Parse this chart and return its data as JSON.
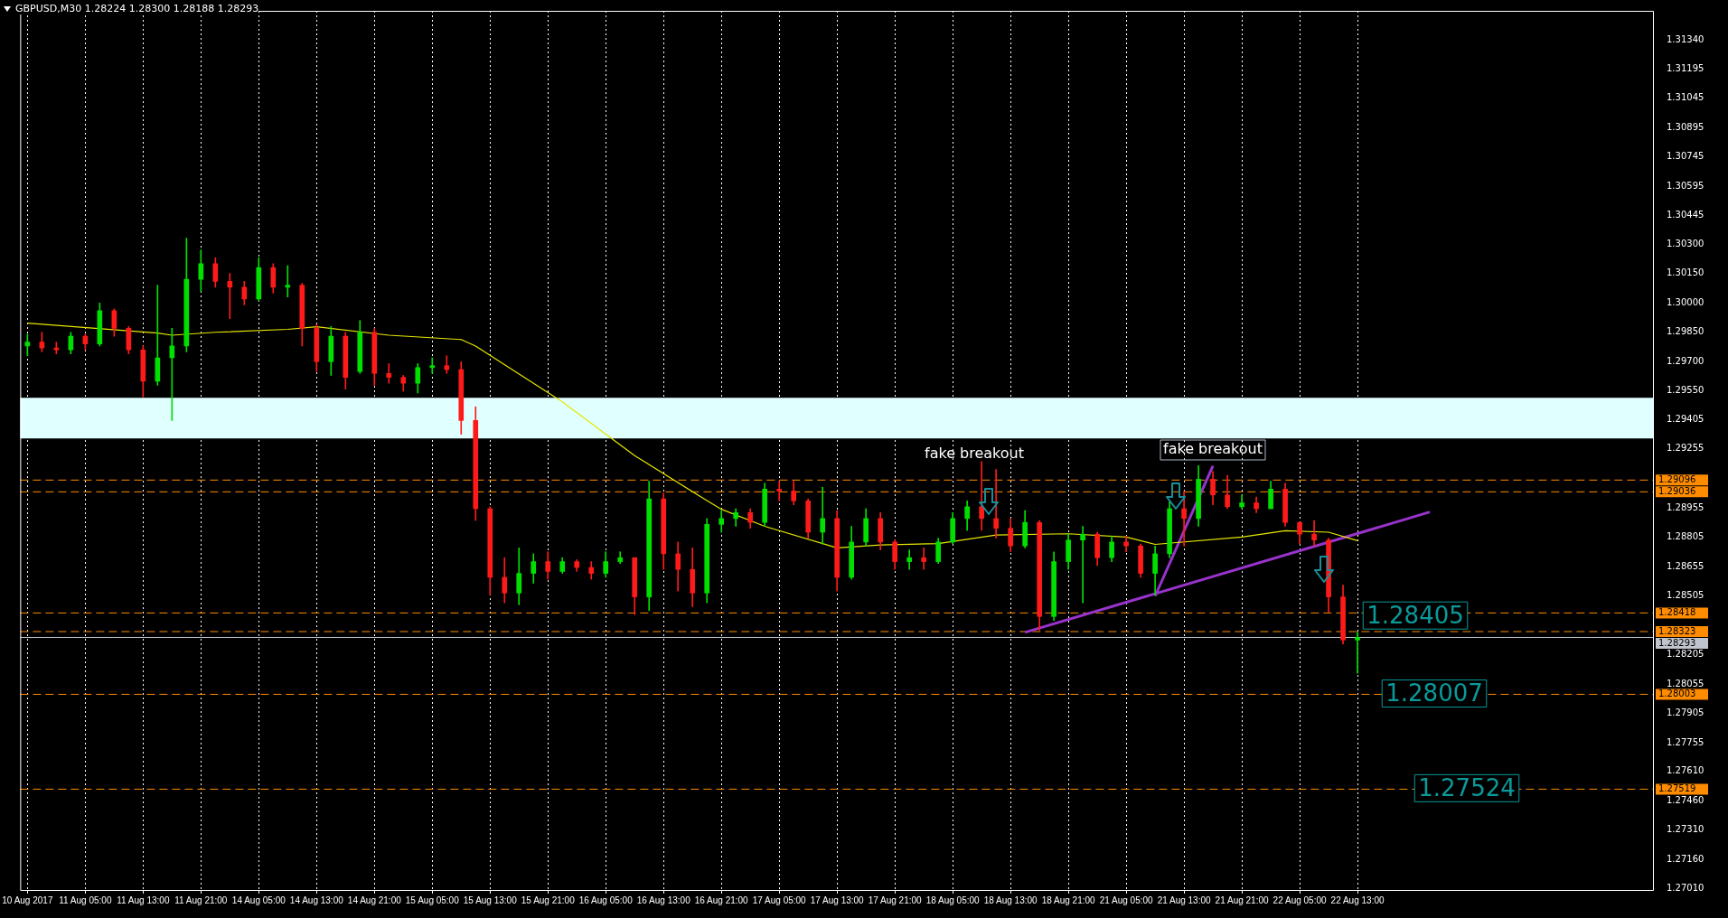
{
  "chart_data": {
    "type": "candlestick",
    "title": "GBPUSD,M30  1.28224 1.28300 1.28188 1.28293",
    "categories": [
      "10 Aug 2017",
      null,
      null,
      null,
      "11 Aug 05:00",
      null,
      null,
      null,
      "11 Aug 13:00",
      null,
      null,
      null,
      "11 Aug 21:00",
      null,
      null,
      null,
      "14 Aug 05:00",
      null,
      null,
      null,
      "14 Aug 13:00",
      null,
      null,
      null,
      "14 Aug 21:00",
      null,
      null,
      null,
      "15 Aug 05:00",
      null,
      null,
      null,
      "15 Aug 13:00",
      null,
      null,
      null,
      "15 Aug 21:00",
      null,
      null,
      null,
      "16 Aug 05:00",
      null,
      null,
      null,
      "16 Aug 13:00",
      null,
      null,
      null,
      "16 Aug 21:00",
      null,
      null,
      null,
      "17 Aug 05:00",
      null,
      null,
      null,
      "17 Aug 13:00",
      null,
      null,
      null,
      "17 Aug 21:00",
      null,
      null,
      null,
      "18 Aug 05:00",
      null,
      null,
      null,
      "18 Aug 13:00",
      null,
      null,
      null,
      "18 Aug 21:00",
      null,
      null,
      null,
      "21 Aug 05:00",
      null,
      null,
      null,
      "21 Aug 13:00",
      null,
      null,
      null,
      "21 Aug 21:00",
      null,
      null,
      null,
      "22 Aug 05:00",
      null,
      null,
      null,
      "22 Aug 13:00",
      null,
      null,
      null,
      null,
      null,
      null,
      null,
      null,
      null,
      null,
      null,
      null,
      null,
      null,
      null,
      null,
      null,
      null,
      null,
      null
    ],
    "ohlc": [
      [
        1.2978,
        1.2984,
        1.2973,
        1.298
      ],
      [
        1.298,
        1.2985,
        1.2975,
        1.2977
      ],
      [
        1.2977,
        1.298,
        1.2974,
        1.2976
      ],
      [
        1.2976,
        1.2985,
        1.2974,
        1.2983
      ],
      [
        1.2983,
        1.2984,
        1.2976,
        1.2979
      ],
      [
        1.2979,
        1.3,
        1.2978,
        1.2996
      ],
      [
        1.2996,
        1.2997,
        1.2983,
        1.2987
      ],
      [
        1.2987,
        1.2988,
        1.2974,
        1.2976
      ],
      [
        1.2976,
        1.2978,
        1.2952,
        1.296
      ],
      [
        1.296,
        1.3009,
        1.2958,
        1.2972
      ],
      [
        1.2972,
        1.2987,
        1.294,
        1.2978
      ],
      [
        1.2978,
        1.3033,
        1.2975,
        1.3012
      ],
      [
        1.3012,
        1.3027,
        1.3006,
        1.302
      ],
      [
        1.302,
        1.3023,
        1.3008,
        1.3011
      ],
      [
        1.3011,
        1.3015,
        1.2992,
        1.3008
      ],
      [
        1.3008,
        1.3011,
        1.2999,
        1.3002
      ],
      [
        1.3002,
        1.3023,
        1.3001,
        1.3018
      ],
      [
        1.3018,
        1.302,
        1.3005,
        1.3008
      ],
      [
        1.3008,
        1.3019,
        1.3003,
        1.3009
      ],
      [
        1.3009,
        1.301,
        1.2978,
        1.2987
      ],
      [
        1.2987,
        1.2989,
        1.2965,
        1.297
      ],
      [
        1.297,
        1.2988,
        1.2963,
        1.2983
      ],
      [
        1.2983,
        1.2985,
        1.2956,
        1.2962
      ],
      [
        1.2965,
        1.2991,
        1.2964,
        1.2985
      ],
      [
        1.2985,
        1.2987,
        1.2958,
        1.2964
      ],
      [
        1.2964,
        1.2969,
        1.2959,
        1.2962
      ],
      [
        1.2962,
        1.2963,
        1.2955,
        1.2959
      ],
      [
        1.2959,
        1.2969,
        1.2954,
        1.2967
      ],
      [
        1.2967,
        1.2972,
        1.2964,
        1.2968
      ],
      [
        1.2968,
        1.2973,
        1.2964,
        1.2966
      ],
      [
        1.2966,
        1.297,
        1.2933,
        1.294
      ],
      [
        1.294,
        1.2947,
        1.2889,
        1.2895
      ],
      [
        1.2895,
        1.2896,
        1.2851,
        1.286
      ],
      [
        1.286,
        1.287,
        1.2847,
        1.2852
      ],
      [
        1.2852,
        1.2875,
        1.2846,
        1.2862
      ],
      [
        1.2862,
        1.2872,
        1.2857,
        1.2868
      ],
      [
        1.2868,
        1.2873,
        1.2859,
        1.2863
      ],
      [
        1.2863,
        1.287,
        1.2862,
        1.2868
      ],
      [
        1.2868,
        1.2869,
        1.2863,
        1.2865
      ],
      [
        1.2865,
        1.2868,
        1.2859,
        1.2862
      ],
      [
        1.2862,
        1.2873,
        1.286,
        1.2868
      ],
      [
        1.2868,
        1.2873,
        1.2867,
        1.287
      ],
      [
        1.287,
        1.287,
        1.2841,
        1.285
      ],
      [
        1.285,
        1.2909,
        1.2843,
        1.29
      ],
      [
        1.29,
        1.2903,
        1.2864,
        1.2872
      ],
      [
        1.2872,
        1.2878,
        1.2853,
        1.2864
      ],
      [
        1.2864,
        1.2875,
        1.2845,
        1.2852
      ],
      [
        1.2852,
        1.289,
        1.2847,
        1.2887
      ],
      [
        1.2887,
        1.2894,
        1.2883,
        1.289
      ],
      [
        1.289,
        1.2895,
        1.2886,
        1.2893
      ],
      [
        1.2893,
        1.2895,
        1.2885,
        1.2888
      ],
      [
        1.2888,
        1.2908,
        1.2886,
        1.2905
      ],
      [
        1.2905,
        1.2909,
        1.2899,
        1.2904
      ],
      [
        1.2904,
        1.2909,
        1.2897,
        1.2899
      ],
      [
        1.2899,
        1.29,
        1.288,
        1.2883
      ],
      [
        1.2883,
        1.2906,
        1.2877,
        1.289
      ],
      [
        1.289,
        1.2894,
        1.2853,
        1.286
      ],
      [
        1.286,
        1.2886,
        1.2859,
        1.2878
      ],
      [
        1.2878,
        1.2895,
        1.2876,
        1.289
      ],
      [
        1.289,
        1.2893,
        1.2874,
        1.2878
      ],
      [
        1.2878,
        1.2879,
        1.2864,
        1.2868
      ],
      [
        1.2868,
        1.2874,
        1.2864,
        1.287
      ],
      [
        1.287,
        1.2875,
        1.2864,
        1.2868
      ],
      [
        1.2868,
        1.288,
        1.2867,
        1.2878
      ],
      [
        1.2878,
        1.2893,
        1.2877,
        1.289
      ],
      [
        1.289,
        1.2899,
        1.2884,
        1.2896
      ],
      [
        1.2896,
        1.2919,
        1.2884,
        1.289
      ],
      [
        1.289,
        1.2915,
        1.288,
        1.2885
      ],
      [
        1.2885,
        1.289,
        1.2873,
        1.2876
      ],
      [
        1.2876,
        1.2894,
        1.2875,
        1.2888
      ],
      [
        1.2888,
        1.2889,
        1.2833,
        1.284
      ],
      [
        1.284,
        1.2873,
        1.2838,
        1.2868
      ],
      [
        1.2868,
        1.2882,
        1.2864,
        1.2879
      ],
      [
        1.2879,
        1.2886,
        1.2847,
        1.2882
      ],
      [
        1.2882,
        1.2883,
        1.2866,
        1.287
      ],
      [
        1.287,
        1.2881,
        1.2868,
        1.2878
      ],
      [
        1.2878,
        1.2881,
        1.2873,
        1.2876
      ],
      [
        1.2876,
        1.2877,
        1.286,
        1.2862
      ],
      [
        1.2862,
        1.2876,
        1.2851,
        1.2872
      ],
      [
        1.2872,
        1.2899,
        1.287,
        1.2895
      ],
      [
        1.2895,
        1.2904,
        1.2876,
        1.289
      ],
      [
        1.289,
        1.2917,
        1.2886,
        1.291
      ],
      [
        1.291,
        1.2914,
        1.2897,
        1.2902
      ],
      [
        1.2902,
        1.2912,
        1.2895,
        1.2896
      ],
      [
        1.2896,
        1.2902,
        1.2895,
        1.2898
      ],
      [
        1.2898,
        1.2901,
        1.2893,
        1.2895
      ],
      [
        1.2895,
        1.2909,
        1.2895,
        1.2905
      ],
      [
        1.2905,
        1.2908,
        1.2886,
        1.2888
      ],
      [
        1.2888,
        1.2888,
        1.2877,
        1.2882
      ],
      [
        1.2882,
        1.2889,
        1.2876,
        1.2879
      ],
      [
        1.2879,
        1.288,
        1.2842,
        1.285
      ],
      [
        1.285,
        1.2856,
        1.2826,
        1.2828
      ],
      [
        1.2828,
        1.2832,
        1.2811,
        1.28293
      ],
      null,
      null,
      null,
      null,
      null,
      null,
      null,
      null,
      null,
      null,
      null,
      null,
      null,
      null,
      null,
      null,
      null,
      null,
      null,
      null
    ],
    "series": [
      {
        "type": "line",
        "color": "#e6e600",
        "values": [
          1.29897,
          null,
          null,
          null,
          null,
          null,
          null,
          null,
          null,
          1.29846,
          1.29835,
          null,
          null,
          1.2985,
          null,
          null,
          null,
          null,
          1.29865,
          null,
          1.29878,
          null,
          null,
          null,
          null,
          1.29835,
          null,
          null,
          null,
          null,
          1.29813,
          1.2978,
          null,
          null,
          null,
          null,
          null,
          1.29495,
          null,
          null,
          null,
          null,
          1.29221,
          null,
          null,
          null,
          null,
          1.28991,
          1.28947,
          null,
          null,
          1.2886,
          null,
          null,
          null,
          null,
          1.2875,
          null,
          null,
          1.28765,
          null,
          null,
          null,
          1.28772,
          null,
          null,
          null,
          1.28816,
          null,
          null,
          null,
          null,
          1.28822,
          null,
          null,
          null,
          1.28805,
          null,
          1.28768,
          null,
          null,
          null,
          null,
          null,
          1.28805,
          null,
          null,
          1.28838,
          null,
          null,
          1.2883,
          null,
          1.28787,
          null,
          null,
          null,
          null,
          null,
          null,
          null,
          null,
          null,
          null,
          null,
          null,
          null,
          null,
          null,
          null,
          null,
          null,
          null,
          null
        ]
      },
      {
        "type": "line",
        "color": "#9933cc",
        "values": [
          null,
          null,
          null,
          null,
          null,
          null,
          null,
          null,
          null,
          null,
          null,
          null,
          null,
          null,
          null,
          null,
          null,
          null,
          null,
          null,
          null,
          null,
          null,
          null,
          null,
          null,
          null,
          null,
          null,
          null,
          null,
          null,
          null,
          null,
          null,
          null,
          null,
          null,
          null,
          null,
          null,
          null,
          null,
          null,
          null,
          null,
          null,
          null,
          null,
          null,
          null,
          null,
          null,
          null,
          null,
          null,
          null,
          null,
          null,
          null,
          null,
          null,
          null,
          null,
          null,
          null,
          null,
          null,
          null,
          1.28319,
          null,
          null,
          null,
          null,
          null,
          null,
          null,
          null,
          null,
          null,
          null,
          null,
          null,
          null,
          null,
          null,
          null,
          null,
          null,
          null,
          null,
          null,
          null,
          null,
          null,
          null,
          null,
          1.28933,
          null,
          null,
          null,
          null,
          null,
          null,
          null,
          null,
          null,
          null,
          null,
          null,
          null,
          null,
          null
        ]
      },
      {
        "type": "line",
        "color": "#9933cc",
        "values": [
          null,
          null,
          null,
          null,
          null,
          null,
          null,
          null,
          null,
          null,
          null,
          null,
          null,
          null,
          null,
          null,
          null,
          null,
          null,
          null,
          null,
          null,
          null,
          null,
          null,
          null,
          null,
          null,
          null,
          null,
          null,
          null,
          null,
          null,
          null,
          null,
          null,
          null,
          null,
          null,
          null,
          null,
          null,
          null,
          null,
          null,
          null,
          null,
          null,
          null,
          null,
          null,
          null,
          null,
          null,
          null,
          null,
          null,
          null,
          null,
          null,
          null,
          null,
          null,
          null,
          null,
          null,
          null,
          null,
          null,
          null,
          null,
          null,
          null,
          null,
          null,
          null,
          null,
          1.28504,
          null,
          null,
          null,
          1.29168,
          null,
          null,
          null,
          null,
          null,
          null,
          null,
          null,
          null,
          null,
          null,
          null,
          null,
          null,
          null,
          null,
          null,
          null,
          null,
          null,
          null,
          null,
          null,
          null,
          null,
          null,
          null,
          null,
          null,
          null
        ]
      }
    ],
    "ylim": [
      1.27,
      1.3149
    ],
    "yticks": [
      {
        "value": 1.3134,
        "label": "1.31340"
      },
      {
        "value": 1.31195,
        "label": "1.31195"
      },
      {
        "value": 1.31045,
        "label": "1.31045"
      },
      {
        "value": 1.30895,
        "label": "1.30895"
      },
      {
        "value": 1.30745,
        "label": "1.30745"
      },
      {
        "value": 1.30595,
        "label": "1.30595"
      },
      {
        "value": 1.30445,
        "label": "1.30445"
      },
      {
        "value": 1.303,
        "label": "1.30300"
      },
      {
        "value": 1.3015,
        "label": "1.30150"
      },
      {
        "value": 1.3,
        "label": "1.30000"
      },
      {
        "value": 1.2985,
        "label": "1.29850"
      },
      {
        "value": 1.297,
        "label": "1.29700"
      },
      {
        "value": 1.2955,
        "label": "1.29550"
      },
      {
        "value": 1.29405,
        "label": "1.29405"
      },
      {
        "value": 1.29255,
        "label": "1.29255"
      },
      {
        "value": 1.28955,
        "label": "1.28955"
      },
      {
        "value": 1.28805,
        "label": "1.28805"
      },
      {
        "value": 1.28655,
        "label": "1.28655"
      },
      {
        "value": 1.28505,
        "label": "1.28505"
      },
      {
        "value": 1.28205,
        "label": "1.28205"
      },
      {
        "value": 1.28055,
        "label": "1.28055"
      },
      {
        "value": 1.27905,
        "label": "1.27905"
      },
      {
        "value": 1.27755,
        "label": "1.27755"
      },
      {
        "value": 1.2761,
        "label": "1.27610"
      },
      {
        "value": 1.2746,
        "label": "1.27460"
      },
      {
        "value": 1.2731,
        "label": "1.27310"
      },
      {
        "value": 1.2716,
        "label": "1.27160"
      },
      {
        "value": 1.2701,
        "label": "1.27010"
      }
    ],
    "bands": [
      {
        "axis": "y",
        "from": 1.29308,
        "to": 1.29516,
        "color": "#e0ffff"
      }
    ],
    "ref_lines": [
      {
        "axis": "y",
        "value": 1.29096,
        "label": "1.29096",
        "color": "#ff8c00",
        "line_style": "dashed"
      },
      {
        "axis": "y",
        "value": 1.29036,
        "label": "1.29036",
        "color": "#ff8c00",
        "line_style": "dashed"
      },
      {
        "axis": "y",
        "value": 1.28418,
        "label": "1.28418",
        "color": "#ff8c00",
        "line_style": "dashed"
      },
      {
        "axis": "y",
        "value": 1.28323,
        "label": "1.28323",
        "color": "#ff8c00",
        "line_style": "dashed"
      },
      {
        "axis": "y",
        "value": 1.28293,
        "label": "1.28293",
        "color": "#c0c4cc",
        "line_style": "solid"
      },
      {
        "axis": "y",
        "value": 1.28003,
        "label": "1.28003",
        "color": "#ff8c00",
        "line_style": "dashed"
      },
      {
        "axis": "y",
        "value": 1.27519,
        "label": "1.27519",
        "color": "#ff8c00",
        "line_style": "dashed"
      }
    ],
    "annotations": [
      "fake breakout",
      "fake breakout",
      {
        "text": "1.28405",
        "y": 1.28405
      },
      {
        "text": "1.28007",
        "y": 1.28007
      },
      {
        "text": "1.27524",
        "y": 1.27524
      }
    ],
    "grid": "x"
  }
}
